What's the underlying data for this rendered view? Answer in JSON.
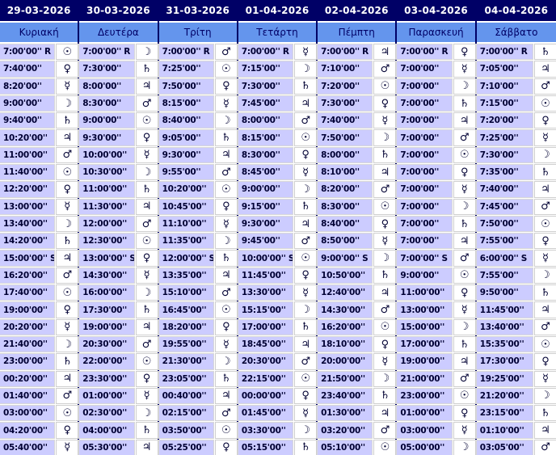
{
  "colors": {
    "header_bg": "#000066",
    "header_text": "#ffffff",
    "day_row_bg": "#6495ED",
    "day_row_text": "#000066",
    "time_cell_bg": "#CCCCFF",
    "symbol_cell_bg": "#FFFFFF",
    "group_divider": "#000066",
    "cell_grid_line": "#CFCFCF",
    "time_text": "#000033"
  },
  "planet_symbols": {
    "sun": "☉",
    "moon": "☽",
    "mercury": "☿",
    "venus": "♀",
    "mars": "♂",
    "jupiter": "♃",
    "saturn": "♄"
  },
  "table": {
    "columns": [
      {
        "date": "29-03-2026",
        "day": "Κυριακή",
        "hours": [
          {
            "time": "7:00'00'' R",
            "planet": "sun"
          },
          {
            "time": "7:40'00''",
            "planet": "venus"
          },
          {
            "time": "8:20'00''",
            "planet": "mercury"
          },
          {
            "time": "9:00'00''",
            "planet": "moon"
          },
          {
            "time": "9:40'00''",
            "planet": "saturn"
          },
          {
            "time": "10:20'00''",
            "planet": "jupiter"
          },
          {
            "time": "11:00'00''",
            "planet": "mars"
          },
          {
            "time": "11:40'00''",
            "planet": "sun"
          },
          {
            "time": "12:20'00''",
            "planet": "venus"
          },
          {
            "time": "13:00'00''",
            "planet": "mercury"
          },
          {
            "time": "13:40'00''",
            "planet": "moon"
          },
          {
            "time": "14:20'00''",
            "planet": "saturn"
          },
          {
            "time": "15:00'00'' S",
            "planet": "jupiter"
          },
          {
            "time": "16:20'00''",
            "planet": "mars"
          },
          {
            "time": "17:40'00''",
            "planet": "sun"
          },
          {
            "time": "19:00'00''",
            "planet": "venus"
          },
          {
            "time": "20:20'00''",
            "planet": "mercury"
          },
          {
            "time": "21:40'00''",
            "planet": "moon"
          },
          {
            "time": "23:00'00''",
            "planet": "saturn"
          },
          {
            "time": "00:20'00''",
            "planet": "jupiter"
          },
          {
            "time": "01:40'00''",
            "planet": "mars"
          },
          {
            "time": "03:00'00''",
            "planet": "sun"
          },
          {
            "time": "04:20'00''",
            "planet": "venus"
          },
          {
            "time": "05:40'00''",
            "planet": "mercury"
          }
        ]
      },
      {
        "date": "30-03-2026",
        "day": "Δευτέρα",
        "hours": [
          {
            "time": "7:00'00'' R",
            "planet": "moon"
          },
          {
            "time": "7:30'00''",
            "planet": "saturn"
          },
          {
            "time": "8:00'00''",
            "planet": "jupiter"
          },
          {
            "time": "8:30'00''",
            "planet": "mars"
          },
          {
            "time": "9:00'00''",
            "planet": "sun"
          },
          {
            "time": "9:30'00''",
            "planet": "venus"
          },
          {
            "time": "10:00'00''",
            "planet": "mercury"
          },
          {
            "time": "10:30'00''",
            "planet": "moon"
          },
          {
            "time": "11:00'00''",
            "planet": "saturn"
          },
          {
            "time": "11:30'00''",
            "planet": "jupiter"
          },
          {
            "time": "12:00'00''",
            "planet": "mars"
          },
          {
            "time": "12:30'00''",
            "planet": "sun"
          },
          {
            "time": "13:00'00'' S",
            "planet": "venus"
          },
          {
            "time": "14:30'00''",
            "planet": "mercury"
          },
          {
            "time": "16:00'00''",
            "planet": "moon"
          },
          {
            "time": "17:30'00''",
            "planet": "saturn"
          },
          {
            "time": "19:00'00''",
            "planet": "jupiter"
          },
          {
            "time": "20:30'00''",
            "planet": "mars"
          },
          {
            "time": "22:00'00''",
            "planet": "sun"
          },
          {
            "time": "23:30'00''",
            "planet": "venus"
          },
          {
            "time": "01:00'00''",
            "planet": "mercury"
          },
          {
            "time": "02:30'00''",
            "planet": "moon"
          },
          {
            "time": "04:00'00''",
            "planet": "saturn"
          },
          {
            "time": "05:30'00''",
            "planet": "jupiter"
          }
        ]
      },
      {
        "date": "31-03-2026",
        "day": "Τρίτη",
        "hours": [
          {
            "time": "7:00'00'' R",
            "planet": "mars"
          },
          {
            "time": "7:25'00''",
            "planet": "sun"
          },
          {
            "time": "7:50'00''",
            "planet": "venus"
          },
          {
            "time": "8:15'00''",
            "planet": "mercury"
          },
          {
            "time": "8:40'00''",
            "planet": "moon"
          },
          {
            "time": "9:05'00''",
            "planet": "saturn"
          },
          {
            "time": "9:30'00''",
            "planet": "jupiter"
          },
          {
            "time": "9:55'00''",
            "planet": "mars"
          },
          {
            "time": "10:20'00''",
            "planet": "sun"
          },
          {
            "time": "10:45'00''",
            "planet": "venus"
          },
          {
            "time": "11:10'00''",
            "planet": "mercury"
          },
          {
            "time": "11:35'00''",
            "planet": "moon"
          },
          {
            "time": "12:00'00'' S",
            "planet": "saturn"
          },
          {
            "time": "13:35'00''",
            "planet": "jupiter"
          },
          {
            "time": "15:10'00''",
            "planet": "mars"
          },
          {
            "time": "16:45'00''",
            "planet": "sun"
          },
          {
            "time": "18:20'00''",
            "planet": "venus"
          },
          {
            "time": "19:55'00''",
            "planet": "mercury"
          },
          {
            "time": "21:30'00''",
            "planet": "moon"
          },
          {
            "time": "23:05'00''",
            "planet": "saturn"
          },
          {
            "time": "00:40'00''",
            "planet": "jupiter"
          },
          {
            "time": "02:15'00''",
            "planet": "mars"
          },
          {
            "time": "03:50'00''",
            "planet": "sun"
          },
          {
            "time": "05:25'00''",
            "planet": "venus"
          }
        ]
      },
      {
        "date": "01-04-2026",
        "day": "Τετάρτη",
        "hours": [
          {
            "time": "7:00'00'' R",
            "planet": "mercury"
          },
          {
            "time": "7:15'00''",
            "planet": "moon"
          },
          {
            "time": "7:30'00''",
            "planet": "saturn"
          },
          {
            "time": "7:45'00''",
            "planet": "jupiter"
          },
          {
            "time": "8:00'00''",
            "planet": "mars"
          },
          {
            "time": "8:15'00''",
            "planet": "sun"
          },
          {
            "time": "8:30'00''",
            "planet": "venus"
          },
          {
            "time": "8:45'00''",
            "planet": "mercury"
          },
          {
            "time": "9:00'00''",
            "planet": "moon"
          },
          {
            "time": "9:15'00''",
            "planet": "saturn"
          },
          {
            "time": "9:30'00''",
            "planet": "jupiter"
          },
          {
            "time": "9:45'00''",
            "planet": "mars"
          },
          {
            "time": "10:00'00'' S",
            "planet": "sun"
          },
          {
            "time": "11:45'00''",
            "planet": "venus"
          },
          {
            "time": "13:30'00''",
            "planet": "mercury"
          },
          {
            "time": "15:15'00''",
            "planet": "moon"
          },
          {
            "time": "17:00'00''",
            "planet": "saturn"
          },
          {
            "time": "18:45'00''",
            "planet": "jupiter"
          },
          {
            "time": "20:30'00''",
            "planet": "mars"
          },
          {
            "time": "22:15'00''",
            "planet": "sun"
          },
          {
            "time": "00:00'00''",
            "planet": "venus"
          },
          {
            "time": "01:45'00''",
            "planet": "mercury"
          },
          {
            "time": "03:30'00''",
            "planet": "moon"
          },
          {
            "time": "05:15'00''",
            "planet": "saturn"
          }
        ]
      },
      {
        "date": "02-04-2026",
        "day": "Πέμπτη",
        "hours": [
          {
            "time": "7:00'00'' R",
            "planet": "jupiter"
          },
          {
            "time": "7:10'00''",
            "planet": "mars"
          },
          {
            "time": "7:20'00''",
            "planet": "sun"
          },
          {
            "time": "7:30'00''",
            "planet": "venus"
          },
          {
            "time": "7:40'00''",
            "planet": "mercury"
          },
          {
            "time": "7:50'00''",
            "planet": "moon"
          },
          {
            "time": "8:00'00''",
            "planet": "saturn"
          },
          {
            "time": "8:10'00''",
            "planet": "jupiter"
          },
          {
            "time": "8:20'00''",
            "planet": "mars"
          },
          {
            "time": "8:30'00''",
            "planet": "sun"
          },
          {
            "time": "8:40'00''",
            "planet": "venus"
          },
          {
            "time": "8:50'00''",
            "planet": "mercury"
          },
          {
            "time": "9:00'00'' S",
            "planet": "moon"
          },
          {
            "time": "10:50'00''",
            "planet": "saturn"
          },
          {
            "time": "12:40'00''",
            "planet": "jupiter"
          },
          {
            "time": "14:30'00''",
            "planet": "mars"
          },
          {
            "time": "16:20'00''",
            "planet": "sun"
          },
          {
            "time": "18:10'00''",
            "planet": "venus"
          },
          {
            "time": "20:00'00''",
            "planet": "mercury"
          },
          {
            "time": "21:50'00''",
            "planet": "moon"
          },
          {
            "time": "23:40'00''",
            "planet": "saturn"
          },
          {
            "time": "01:30'00''",
            "planet": "jupiter"
          },
          {
            "time": "03:20'00''",
            "planet": "mars"
          },
          {
            "time": "05:10'00''",
            "planet": "sun"
          }
        ]
      },
      {
        "date": "03-04-2026",
        "day": "Παρασκευή",
        "hours": [
          {
            "time": "7:00'00'' R",
            "planet": "venus"
          },
          {
            "time": "7:00'00''",
            "planet": "mercury"
          },
          {
            "time": "7:00'00''",
            "planet": "moon"
          },
          {
            "time": "7:00'00''",
            "planet": "saturn"
          },
          {
            "time": "7:00'00''",
            "planet": "jupiter"
          },
          {
            "time": "7:00'00''",
            "planet": "mars"
          },
          {
            "time": "7:00'00''",
            "planet": "sun"
          },
          {
            "time": "7:00'00''",
            "planet": "venus"
          },
          {
            "time": "7:00'00''",
            "planet": "mercury"
          },
          {
            "time": "7:00'00''",
            "planet": "moon"
          },
          {
            "time": "7:00'00''",
            "planet": "saturn"
          },
          {
            "time": "7:00'00''",
            "planet": "jupiter"
          },
          {
            "time": "7:00'00'' S",
            "planet": "mars"
          },
          {
            "time": "9:00'00''",
            "planet": "sun"
          },
          {
            "time": "11:00'00''",
            "planet": "venus"
          },
          {
            "time": "13:00'00''",
            "planet": "mercury"
          },
          {
            "time": "15:00'00''",
            "planet": "moon"
          },
          {
            "time": "17:00'00''",
            "planet": "saturn"
          },
          {
            "time": "19:00'00''",
            "planet": "jupiter"
          },
          {
            "time": "21:00'00''",
            "planet": "mars"
          },
          {
            "time": "23:00'00''",
            "planet": "sun"
          },
          {
            "time": "01:00'00''",
            "planet": "venus"
          },
          {
            "time": "03:00'00''",
            "planet": "mercury"
          },
          {
            "time": "05:00'00''",
            "planet": "moon"
          }
        ]
      },
      {
        "date": "04-04-2026",
        "day": "Σάββατο",
        "hours": [
          {
            "time": "7:00'00'' R",
            "planet": "saturn"
          },
          {
            "time": "7:05'00''",
            "planet": "jupiter"
          },
          {
            "time": "7:10'00''",
            "planet": "mars"
          },
          {
            "time": "7:15'00''",
            "planet": "sun"
          },
          {
            "time": "7:20'00''",
            "planet": "venus"
          },
          {
            "time": "7:25'00''",
            "planet": "mercury"
          },
          {
            "time": "7:30'00''",
            "planet": "moon"
          },
          {
            "time": "7:35'00''",
            "planet": "saturn"
          },
          {
            "time": "7:40'00''",
            "planet": "jupiter"
          },
          {
            "time": "7:45'00''",
            "planet": "mars"
          },
          {
            "time": "7:50'00''",
            "planet": "sun"
          },
          {
            "time": "7:55'00''",
            "planet": "venus"
          },
          {
            "time": "6:00'00'' S",
            "planet": "mercury"
          },
          {
            "time": "7:55'00''",
            "planet": "moon"
          },
          {
            "time": "9:50'00''",
            "planet": "saturn"
          },
          {
            "time": "11:45'00''",
            "planet": "jupiter"
          },
          {
            "time": "13:40'00''",
            "planet": "mars"
          },
          {
            "time": "15:35'00''",
            "planet": "sun"
          },
          {
            "time": "17:30'00''",
            "planet": "venus"
          },
          {
            "time": "19:25'00''",
            "planet": "mercury"
          },
          {
            "time": "21:20'00''",
            "planet": "moon"
          },
          {
            "time": "23:15'00''",
            "planet": "saturn"
          },
          {
            "time": "01:10'00''",
            "planet": "jupiter"
          },
          {
            "time": "03:05'00''",
            "planet": "mars"
          }
        ]
      }
    ]
  }
}
